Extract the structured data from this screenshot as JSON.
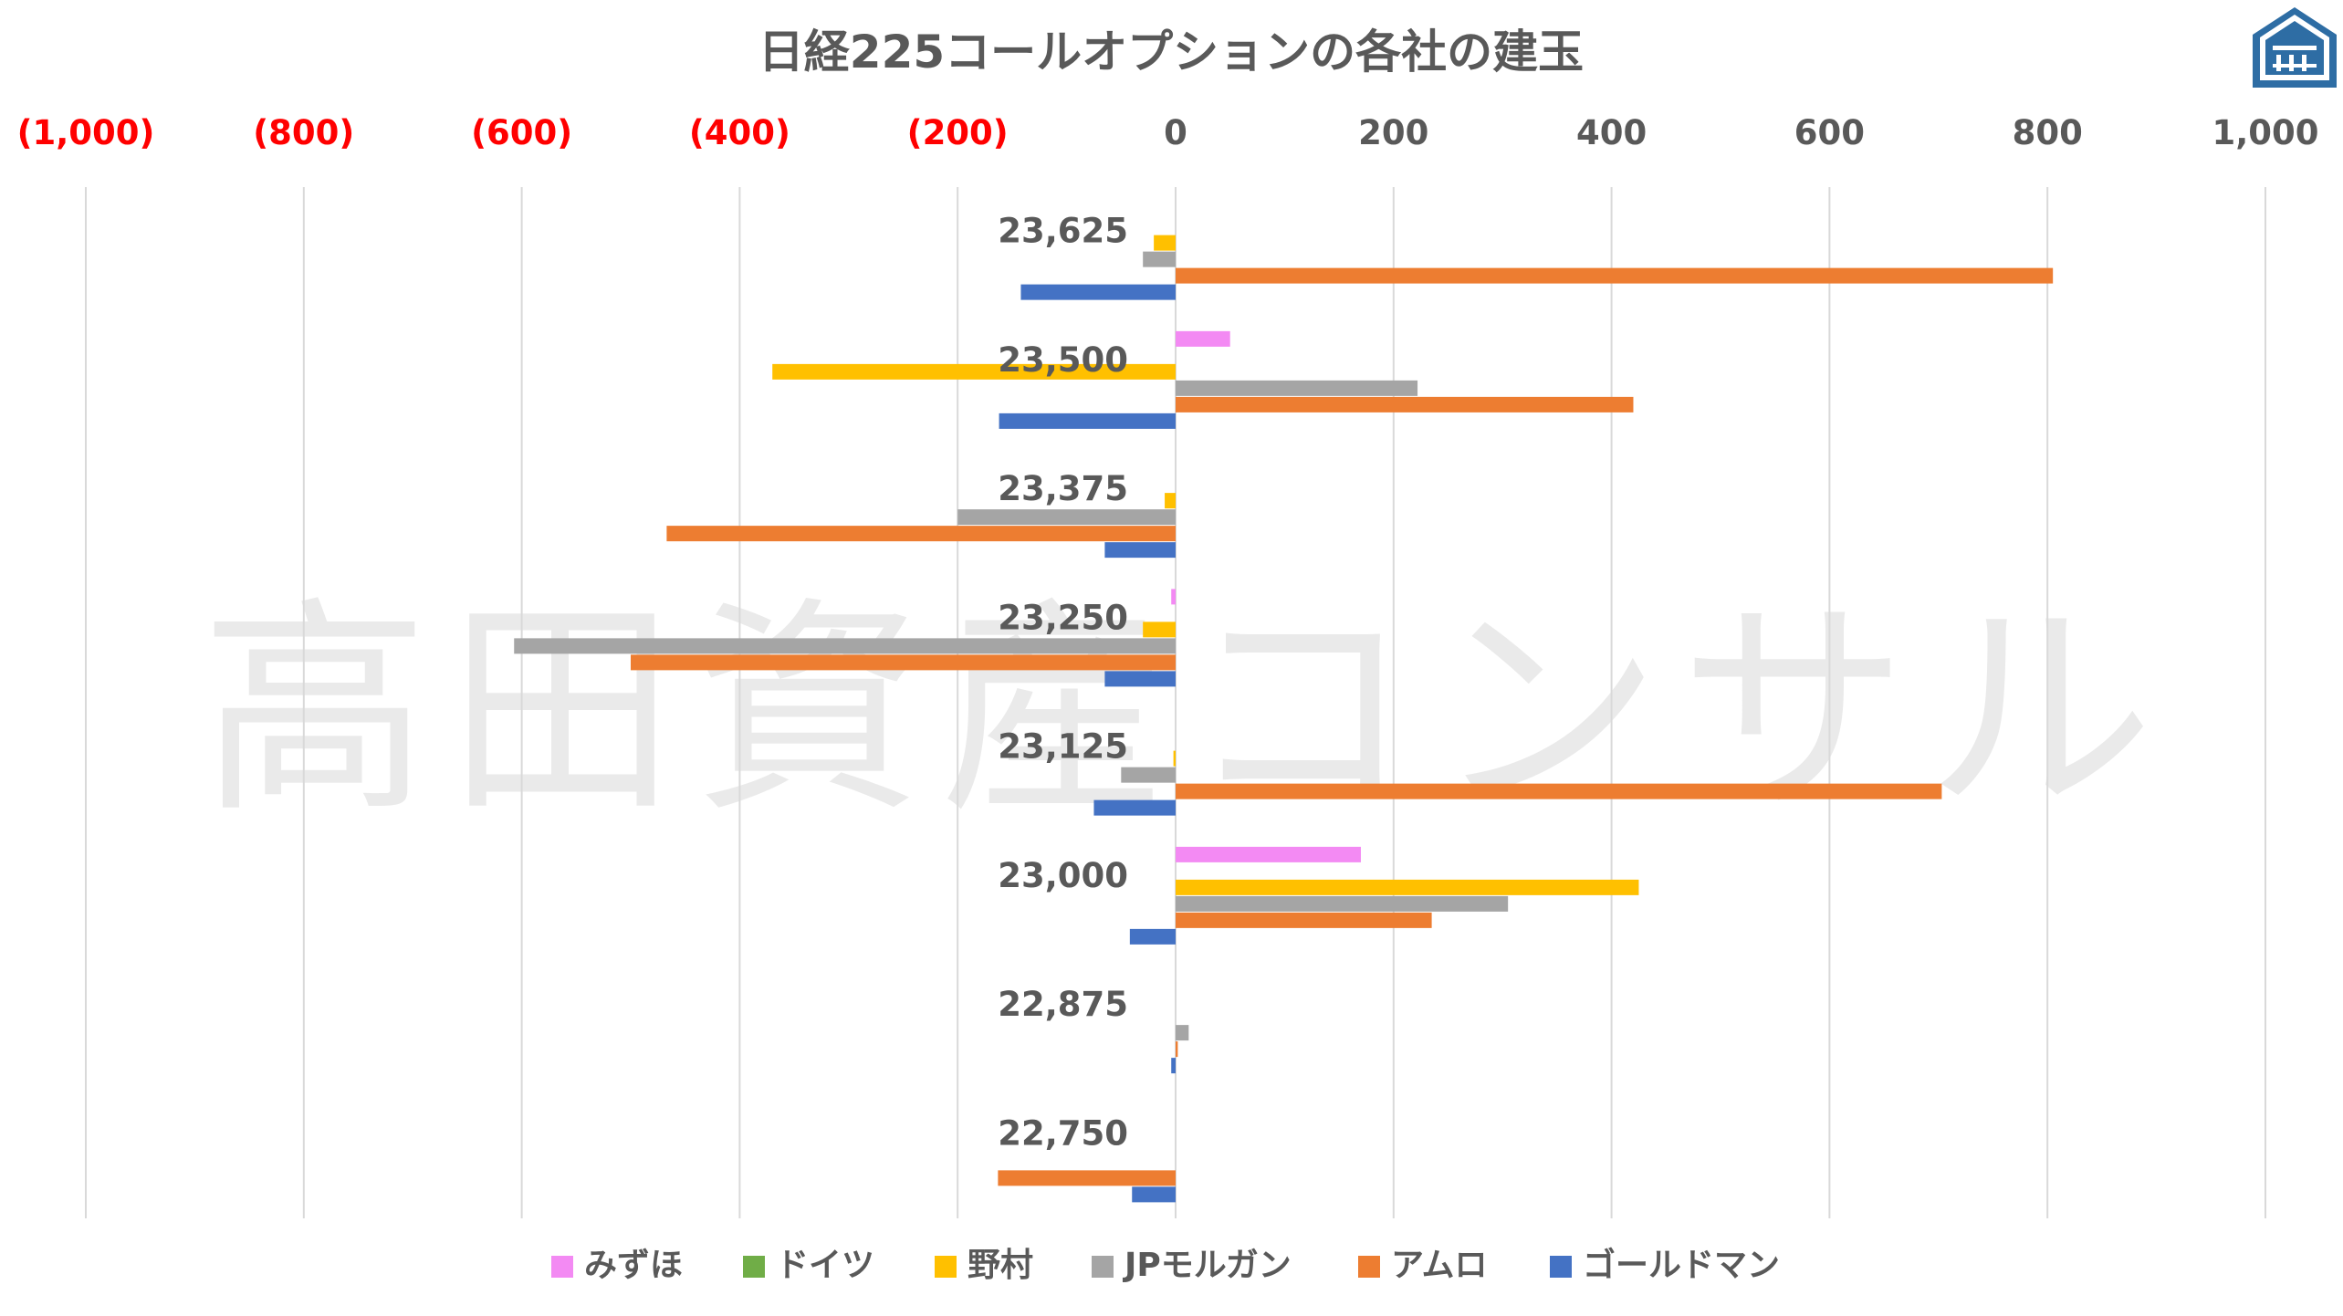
{
  "colors": {
    "negative_tick": "#ff0000",
    "positive_tick": "#595959",
    "grid": "#d9d9d9",
    "logo": "#2e6da4"
  },
  "watermark": "高田資産コンサル",
  "logo_icon": "house-shield-logo-icon",
  "chart_data": {
    "type": "bar",
    "orientation": "horizontal",
    "title": "日経225コールオプションの各社の建玉",
    "categories": [
      "23,625",
      "23,500",
      "23,375",
      "23,250",
      "23,125",
      "23,000",
      "22,875",
      "22,750"
    ],
    "xlim": [
      -1000,
      1000
    ],
    "x_ticks": [
      {
        "value": -1000,
        "label": "(1,000)"
      },
      {
        "value": -800,
        "label": "(800)"
      },
      {
        "value": -600,
        "label": "(600)"
      },
      {
        "value": -400,
        "label": "(400)"
      },
      {
        "value": -200,
        "label": "(200)"
      },
      {
        "value": 0,
        "label": "0"
      },
      {
        "value": 200,
        "label": "200"
      },
      {
        "value": 400,
        "label": "400"
      },
      {
        "value": 600,
        "label": "600"
      },
      {
        "value": 800,
        "label": "800"
      },
      {
        "value": 1000,
        "label": "1,000"
      }
    ],
    "grid": true,
    "legend_position": "bottom",
    "series": [
      {
        "name": "みずほ",
        "color": "#f38af3",
        "values": [
          0,
          50,
          0,
          -4,
          0,
          170,
          0,
          0
        ]
      },
      {
        "name": "ドイツ",
        "color": "#70ad47",
        "values": [
          0,
          0,
          0,
          0,
          0,
          0,
          0,
          0
        ]
      },
      {
        "name": "野村",
        "color": "#ffc000",
        "values": [
          -20,
          -370,
          -10,
          -30,
          -2,
          425,
          0,
          0
        ]
      },
      {
        "name": "JPモルガン",
        "color": "#a5a5a5",
        "values": [
          -30,
          222,
          -200,
          -607,
          -50,
          305,
          12,
          0
        ]
      },
      {
        "name": "アムロ",
        "color": "#ed7d31",
        "values": [
          805,
          420,
          -467,
          -500,
          703,
          235,
          2,
          -163
        ]
      },
      {
        "name": "ゴールドマン",
        "color": "#4472c4",
        "values": [
          -142,
          -162,
          -65,
          -65,
          -75,
          -42,
          -4,
          -40
        ]
      }
    ]
  }
}
